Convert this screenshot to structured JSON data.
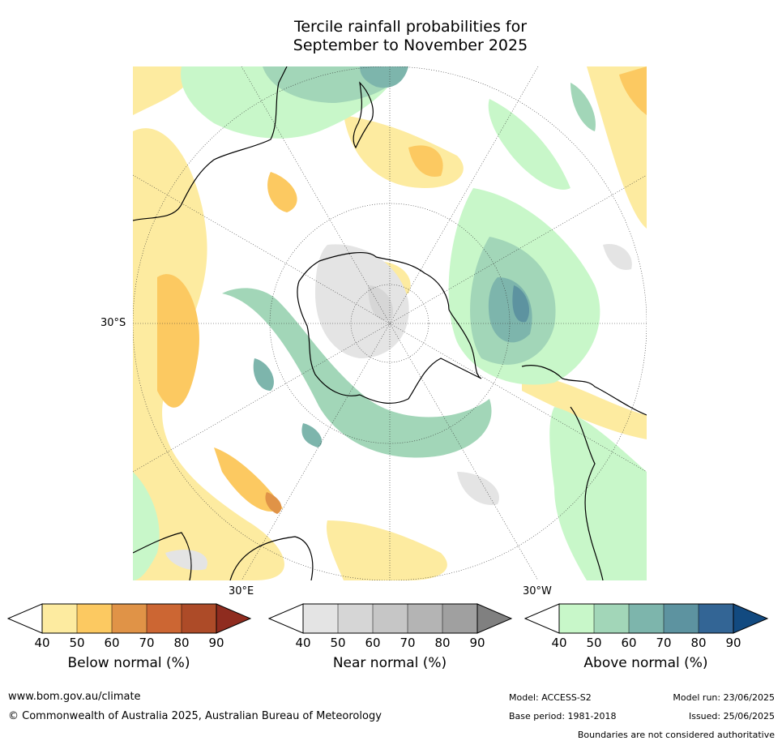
{
  "title_line1": "Tercile rainfall probabilities for",
  "title_line2": "September to November 2025",
  "map": {
    "latitude_label": "30°S",
    "meridian_labels": [
      "30°E",
      "30°W"
    ]
  },
  "legends": [
    {
      "id": "below",
      "label": "Below normal (%)",
      "ticks": [
        "40",
        "50",
        "60",
        "70",
        "80",
        "90"
      ],
      "colors": [
        "#ffffff",
        "#fdeba0",
        "#fcc961",
        "#e09347",
        "#cc6633",
        "#ad4b28",
        "#8f2c1f"
      ]
    },
    {
      "id": "near",
      "label": "Near normal (%)",
      "ticks": [
        "40",
        "50",
        "60",
        "70",
        "80",
        "90"
      ],
      "colors": [
        "#ffffff",
        "#e4e4e4",
        "#d6d6d6",
        "#c6c6c6",
        "#b4b4b4",
        "#a0a0a0",
        "#808080"
      ]
    },
    {
      "id": "above",
      "label": "Above normal (%)",
      "ticks": [
        "40",
        "50",
        "60",
        "70",
        "80",
        "90"
      ],
      "colors": [
        "#ffffff",
        "#c8f7c9",
        "#a2d6b8",
        "#7db5ac",
        "#5d93a0",
        "#336595",
        "#124a80"
      ]
    }
  ],
  "footer": {
    "website": "www.bom.gov.au/climate",
    "copyright": "© Commonwealth of Australia 2025, Australian Bureau of Meteorology",
    "model": "Model: ACCESS-S2",
    "base_period": "Base period: 1981-2018",
    "model_run": "Model run: 23/06/2025",
    "issued": "Issued: 25/06/2025",
    "disclaimer": "Boundaries are not considered authoritative"
  }
}
